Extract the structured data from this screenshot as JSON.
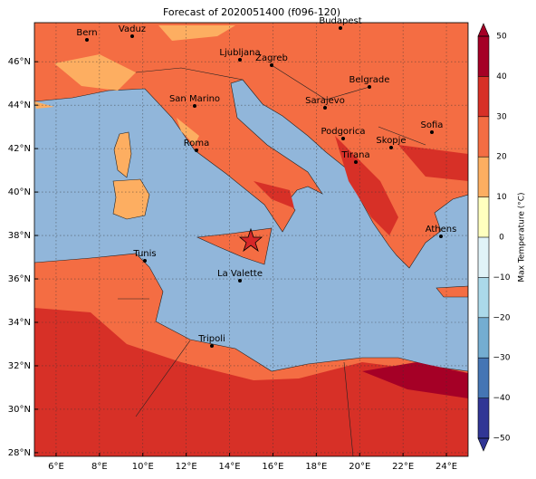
{
  "chart_data": {
    "type": "map",
    "title": "Forecast of 2020051400 (f096-120)",
    "xlim": [
      5,
      25
    ],
    "ylim": [
      27.83,
      47.8
    ],
    "xticks": [
      {
        "value": 6,
        "label": "6°E"
      },
      {
        "value": 8,
        "label": "8°E"
      },
      {
        "value": 10,
        "label": "10°E"
      },
      {
        "value": 12,
        "label": "12°E"
      },
      {
        "value": 14,
        "label": "14°E"
      },
      {
        "value": 16,
        "label": "16°E"
      },
      {
        "value": 18,
        "label": "18°E"
      },
      {
        "value": 20,
        "label": "20°E"
      },
      {
        "value": 22,
        "label": "22°E"
      },
      {
        "value": 24,
        "label": "24°E"
      }
    ],
    "yticks": [
      {
        "value": 28,
        "label": "28°N"
      },
      {
        "value": 30,
        "label": "30°N"
      },
      {
        "value": 32,
        "label": "32°N"
      },
      {
        "value": 34,
        "label": "34°N"
      },
      {
        "value": 36,
        "label": "36°N"
      },
      {
        "value": 38,
        "label": "38°N"
      },
      {
        "value": 40,
        "label": "40°N"
      },
      {
        "value": 42,
        "label": "42°N"
      },
      {
        "value": 44,
        "label": "44°N"
      },
      {
        "value": 46,
        "label": "46°N"
      }
    ],
    "grid": true,
    "cities": [
      "Bern",
      "Vaduz",
      "Budapest",
      "Ljubljana",
      "Zagreb",
      "Belgrade",
      "San Marino",
      "Sarajevo",
      "Sofia",
      "Roma",
      "Podgorica",
      "Skopje",
      "Tirana",
      "Athens",
      "Tunis",
      "La Valette",
      "Tripoli"
    ],
    "colorbar": {
      "label": "Max Temperature (°C)",
      "lim": [
        -50,
        50
      ],
      "ticks": [
        {
          "value": -50,
          "label": "−50"
        },
        {
          "value": -40,
          "label": "−40"
        },
        {
          "value": -30,
          "label": "−30"
        },
        {
          "value": -20,
          "label": "−20"
        },
        {
          "value": -10,
          "label": "−10"
        },
        0,
        10,
        20,
        30,
        40,
        50
      ],
      "colors": [
        "#313695",
        "#4575b4",
        "#74add1",
        "#abd9e9",
        "#e0f3f8",
        "#ffffbf",
        "#fdae61",
        "#f46d43",
        "#d73027",
        "#a50026"
      ]
    }
  }
}
